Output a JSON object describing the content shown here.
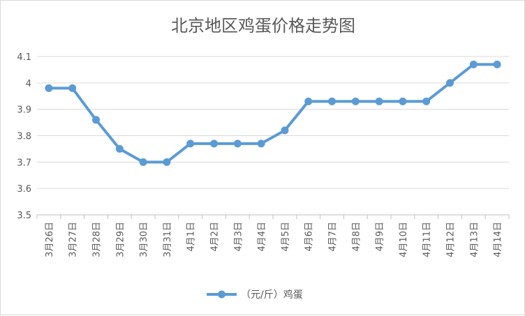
{
  "chart_data": {
    "type": "line",
    "title": "北京地区鸡蛋价格走势图",
    "xlabel": "",
    "ylabel": "",
    "categories": [
      "3月26日",
      "3月27日",
      "3月28日",
      "3月29日",
      "3月30日",
      "3月31日",
      "4月1日",
      "4月2日",
      "4月3日",
      "4月4日",
      "4月5日",
      "4月6日",
      "4月7日",
      "4月8日",
      "4月9日",
      "4月10日",
      "4月11日",
      "4月12日",
      "4月13日",
      "4月14日"
    ],
    "series": [
      {
        "name": "（元/斤）鸡蛋",
        "values": [
          3.98,
          3.98,
          3.86,
          3.75,
          3.7,
          3.7,
          3.77,
          3.77,
          3.77,
          3.77,
          3.82,
          3.93,
          3.93,
          3.93,
          3.93,
          3.93,
          3.93,
          4.0,
          4.07,
          4.07
        ]
      }
    ],
    "ylim": [
      3.5,
      4.1
    ],
    "yticks": [
      "3.5",
      "3.6",
      "3.7",
      "3.8",
      "3.9",
      "4",
      "4.1"
    ],
    "grid": true,
    "legend_position": "bottom",
    "colors": {
      "line": "#5b9bd5",
      "grid": "#d9d9d9",
      "axis": "#bfbfbf",
      "text": "#595959"
    }
  }
}
